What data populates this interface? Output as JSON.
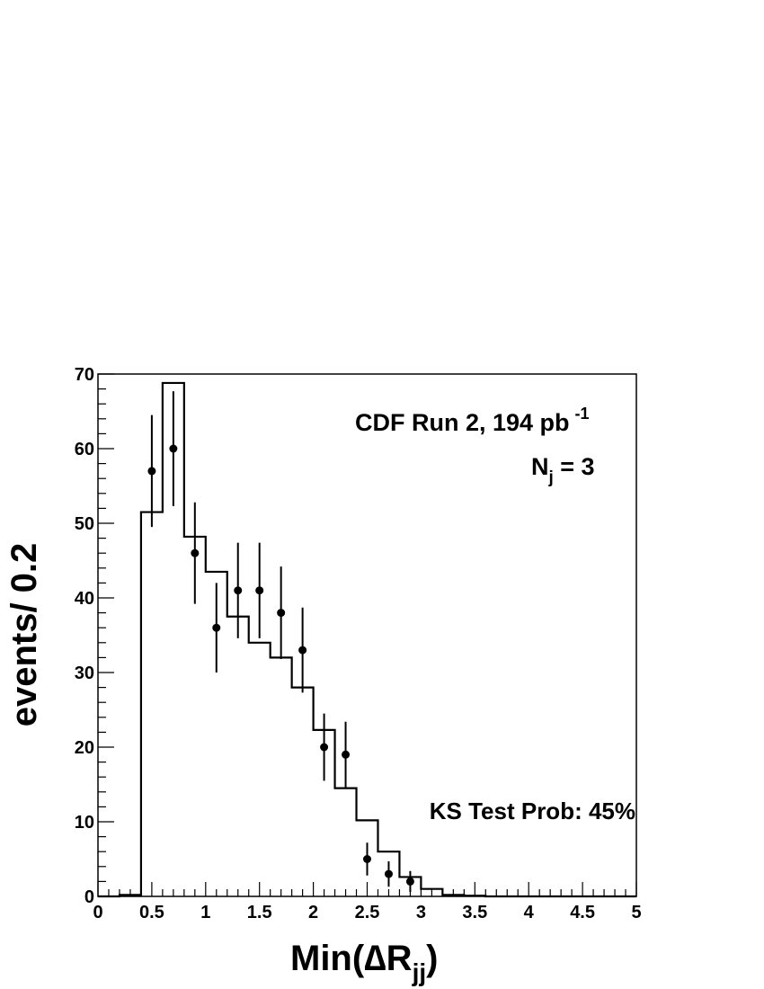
{
  "chart_data": {
    "type": "histogram",
    "annotations": {
      "run_label": "CDF Run 2, 194 pb",
      "run_label_sup": "-1",
      "nj_main": "N",
      "nj_sub": "j",
      "nj_value": " = 3",
      "ks_label": "KS Test Prob: 45%"
    },
    "xlabel": {
      "main": "Min(",
      "delta": "∆",
      "R": "R",
      "sub": "jj",
      "close": ")"
    },
    "ylabel": "events/ 0.2",
    "xlim": [
      0,
      5
    ],
    "ylim": [
      0,
      70
    ],
    "x_ticks": [
      0,
      0.5,
      1,
      1.5,
      2,
      2.5,
      3,
      3.5,
      4,
      4.5,
      5
    ],
    "x_tick_labels": [
      "0",
      "0.5",
      "1",
      "1.5",
      "2",
      "2.5",
      "3",
      "3.5",
      "4",
      "4.5",
      "5"
    ],
    "y_ticks": [
      0,
      10,
      20,
      30,
      40,
      50,
      60,
      70
    ],
    "y_tick_labels": [
      "0",
      "10",
      "20",
      "30",
      "40",
      "50",
      "60",
      "70"
    ],
    "grid": false,
    "histogram": {
      "bin_edges": [
        0,
        0.2,
        0.4,
        0.6,
        0.8,
        1.0,
        1.2,
        1.4,
        1.6,
        1.8,
        2.0,
        2.2,
        2.4,
        2.6,
        2.8,
        3.0,
        3.2,
        3.4,
        3.6,
        3.8,
        4.0,
        4.2,
        4.4,
        4.6,
        4.8,
        5.0
      ],
      "values": [
        0,
        0.2,
        51.5,
        68.8,
        48.2,
        43.5,
        37.5,
        34,
        32,
        28,
        22.3,
        14.5,
        10.2,
        6,
        2.6,
        1.0,
        0.2,
        0.1,
        0,
        0,
        0,
        0,
        0,
        0,
        0
      ]
    },
    "data_points": {
      "x": [
        0.5,
        0.7,
        0.9,
        1.1,
        1.3,
        1.5,
        1.7,
        1.9,
        2.1,
        2.3,
        2.5,
        2.7,
        2.9
      ],
      "y": [
        57,
        60,
        46,
        36,
        41,
        41,
        38,
        33,
        20,
        19,
        5,
        3,
        2
      ],
      "err_low": [
        7.5,
        7.7,
        6.8,
        6.0,
        6.4,
        6.4,
        6.2,
        5.7,
        4.5,
        4.4,
        2.2,
        1.7,
        1.4
      ],
      "err_high": [
        7.5,
        7.7,
        6.8,
        6.0,
        6.4,
        6.4,
        6.2,
        5.7,
        4.5,
        4.4,
        2.2,
        1.7,
        1.4
      ]
    }
  }
}
